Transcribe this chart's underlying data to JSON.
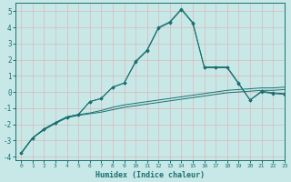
{
  "xlabel": "Humidex (Indice chaleur)",
  "xlim": [
    -0.5,
    23
  ],
  "ylim": [
    -4.2,
    5.5
  ],
  "yticks": [
    -4,
    -3,
    -2,
    -1,
    0,
    1,
    2,
    3,
    4,
    5
  ],
  "xticks": [
    0,
    1,
    2,
    3,
    4,
    5,
    6,
    7,
    8,
    9,
    10,
    11,
    12,
    13,
    14,
    15,
    16,
    17,
    18,
    19,
    20,
    21,
    22,
    23
  ],
  "background_color": "#c8e8e8",
  "grid_color": "#d8b8b8",
  "line_color": "#1a7070",
  "line1_y": [
    -3.8,
    -2.85,
    -2.35,
    -1.95,
    -1.6,
    -1.45,
    -1.35,
    -1.25,
    -1.1,
    -0.95,
    -0.85,
    -0.75,
    -0.65,
    -0.55,
    -0.45,
    -0.35,
    -0.25,
    -0.15,
    -0.05,
    0.0,
    0.05,
    0.1,
    0.1,
    0.15
  ],
  "line2_y": [
    -3.8,
    -2.85,
    -2.3,
    -1.9,
    -1.55,
    -1.4,
    -1.3,
    -1.15,
    -0.95,
    -0.8,
    -0.7,
    -0.6,
    -0.5,
    -0.4,
    -0.3,
    -0.2,
    -0.1,
    0.0,
    0.1,
    0.15,
    0.2,
    0.25,
    0.25,
    0.3
  ],
  "line3_y": [
    -3.8,
    -2.85,
    -2.3,
    -1.9,
    -1.55,
    -1.4,
    -0.6,
    -0.4,
    0.3,
    0.55,
    1.9,
    2.6,
    4.0,
    4.35,
    5.15,
    4.3,
    1.55,
    1.55,
    1.55,
    0.55,
    -0.5,
    0.0,
    -0.1,
    -0.15
  ],
  "line4_y": [
    -3.8,
    -2.85,
    -2.3,
    -1.9,
    -1.55,
    -1.4,
    -0.6,
    -0.4,
    0.3,
    0.55,
    1.85,
    2.55,
    3.95,
    4.3,
    5.1,
    4.25,
    1.5,
    1.5,
    1.5,
    0.5,
    -0.5,
    0.05,
    -0.05,
    -0.1
  ]
}
